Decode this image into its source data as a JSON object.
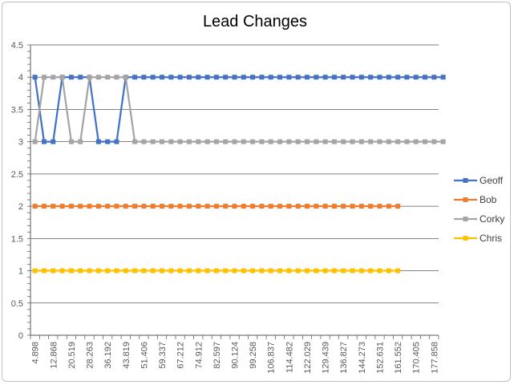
{
  "chart_data": {
    "type": "line",
    "title": "Lead Changes",
    "xlabel": "",
    "ylabel": "",
    "ylim": [
      0,
      4.5
    ],
    "ytick_step": 0.5,
    "grid": true,
    "legend_position": "right",
    "yticks": [
      "0",
      "0.5",
      "1",
      "1.5",
      "2",
      "2.5",
      "3",
      "3.5",
      "4",
      "4.5"
    ],
    "x_tick_labels": [
      "4.898",
      "12.868",
      "20.519",
      "28.263",
      "36.192",
      "43.819",
      "51.406",
      "59.337",
      "67.212",
      "74.912",
      "82.597",
      "90.124",
      "99.258",
      "106.837",
      "114.482",
      "122.029",
      "129.439",
      "136.827",
      "144.273",
      "152.631",
      "161.552",
      "170.405",
      "177.858"
    ],
    "series": [
      {
        "name": "Geoff",
        "color": "#4472c4",
        "values": [
          4,
          3,
          3,
          4,
          4,
          4,
          4,
          3,
          3,
          3,
          4,
          4,
          4,
          4,
          4,
          4,
          4,
          4,
          4,
          4,
          4,
          4,
          4,
          4,
          4,
          4,
          4,
          4,
          4,
          4,
          4,
          4,
          4,
          4,
          4,
          4,
          4,
          4,
          4,
          4,
          4,
          4,
          4,
          4,
          4,
          4
        ]
      },
      {
        "name": "Bob",
        "color": "#ed7d31",
        "values": [
          2,
          2,
          2,
          2,
          2,
          2,
          2,
          2,
          2,
          2,
          2,
          2,
          2,
          2,
          2,
          2,
          2,
          2,
          2,
          2,
          2,
          2,
          2,
          2,
          2,
          2,
          2,
          2,
          2,
          2,
          2,
          2,
          2,
          2,
          2,
          2,
          2,
          2,
          2,
          2,
          2
        ]
      },
      {
        "name": "Corky",
        "color": "#a5a5a5",
        "values": [
          3,
          4,
          4,
          4,
          3,
          3,
          4,
          4,
          4,
          4,
          4,
          3,
          3,
          3,
          3,
          3,
          3,
          3,
          3,
          3,
          3,
          3,
          3,
          3,
          3,
          3,
          3,
          3,
          3,
          3,
          3,
          3,
          3,
          3,
          3,
          3,
          3,
          3,
          3,
          3,
          3,
          3,
          3,
          3,
          3,
          3
        ]
      },
      {
        "name": "Chris",
        "color": "#ffc000",
        "values": [
          1,
          1,
          1,
          1,
          1,
          1,
          1,
          1,
          1,
          1,
          1,
          1,
          1,
          1,
          1,
          1,
          1,
          1,
          1,
          1,
          1,
          1,
          1,
          1,
          1,
          1,
          1,
          1,
          1,
          1,
          1,
          1,
          1,
          1,
          1,
          1,
          1,
          1,
          1,
          1,
          1
        ]
      }
    ]
  }
}
